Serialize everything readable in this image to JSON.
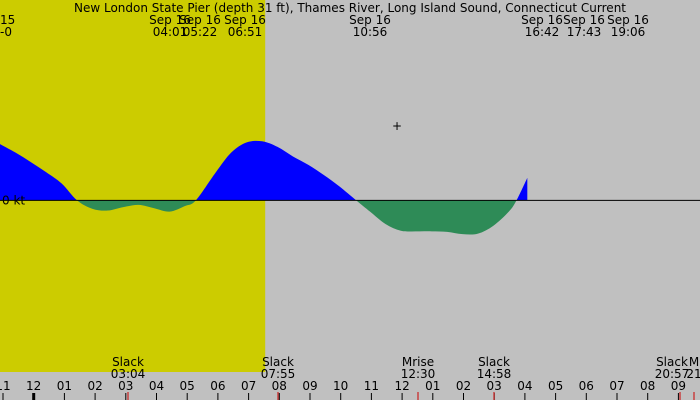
{
  "chart_data": {
    "type": "area",
    "title": "New London State Pier (depth 31 ft), Thames River, Long Island Sound, Connecticut Current",
    "left_edge_date": "15",
    "left_edge_date2": "-0",
    "zero_label": "0 kt",
    "colors": {
      "background": "#c0c0c0",
      "daylight": "#cccc00",
      "flood": "#0000ff",
      "ebb": "#2e8b57",
      "axis": "#000000",
      "tick_red": "#cc0000"
    },
    "x_range_hours": [
      10.5,
      33.2
    ],
    "y_range_kt": [
      -3.05,
      2.85
    ],
    "daylight_hours": [
      6.85,
      19.1
    ],
    "top_labels": [
      {
        "date": "Sep 16",
        "time": "04:01",
        "hour": 28.02
      },
      {
        "date": "Sep 16",
        "time": "05:22",
        "hour": 29.37
      },
      {
        "date": "Sep 16",
        "time": "06:51",
        "hour": 30.85
      },
      {
        "date": "Sep 16",
        "time": "10:56",
        "hour": 10.93
      },
      {
        "date": "Sep 16",
        "time": "16:42",
        "hour": 16.7
      },
      {
        "date": "Sep 16",
        "time": "17:43",
        "hour": 17.72
      },
      {
        "date": "Sep 16",
        "time": "19:06",
        "hour": 19.1
      }
    ],
    "events": [
      {
        "name": "Slack",
        "time": "03:04",
        "hour": 27.07
      },
      {
        "name": "Slack",
        "time": "07:55",
        "hour": 31.92
      },
      {
        "name": "Mrise",
        "time": "12:30",
        "hour": 12.5
      },
      {
        "name": "Slack",
        "time": "14:58",
        "hour": 14.97
      },
      {
        "name": "Slack",
        "time": "20:57",
        "hour": 20.95
      },
      {
        "name": "M",
        "time": "21",
        "hour": 21.5
      }
    ],
    "hour_ticks": [
      "11",
      "12",
      "01",
      "02",
      "03",
      "04",
      "05",
      "06",
      "07",
      "08",
      "09",
      "10",
      "11",
      "12",
      "01",
      "02",
      "03",
      "04",
      "05",
      "06",
      "07",
      "08",
      "09"
    ],
    "current_series": [
      {
        "hour": 10.5,
        "kt": 1.0
      },
      {
        "hour": 11.0,
        "kt": 0.85
      },
      {
        "hour": 11.5,
        "kt": 0.68
      },
      {
        "hour": 12.0,
        "kt": 0.5
      },
      {
        "hour": 12.5,
        "kt": 0.3
      },
      {
        "hour": 13.0,
        "kt": 0.0
      },
      {
        "hour": 13.5,
        "kt": -0.15
      },
      {
        "hour": 14.0,
        "kt": -0.18
      },
      {
        "hour": 14.5,
        "kt": -0.12
      },
      {
        "hour": 15.0,
        "kt": -0.08
      },
      {
        "hour": 15.5,
        "kt": -0.14
      },
      {
        "hour": 16.0,
        "kt": -0.2
      },
      {
        "hour": 16.5,
        "kt": -0.1
      },
      {
        "hour": 16.85,
        "kt": 0.0
      },
      {
        "hour": 17.5,
        "kt": 0.5
      },
      {
        "hour": 18.0,
        "kt": 0.85
      },
      {
        "hour": 18.5,
        "kt": 1.03
      },
      {
        "hour": 19.0,
        "kt": 1.05
      },
      {
        "hour": 19.5,
        "kt": 0.95
      },
      {
        "hour": 20.0,
        "kt": 0.78
      },
      {
        "hour": 20.5,
        "kt": 0.63
      },
      {
        "hour": 21.0,
        "kt": 0.45
      },
      {
        "hour": 21.5,
        "kt": 0.25
      },
      {
        "hour": 22.05,
        "kt": 0.0
      },
      {
        "hour": 22.5,
        "kt": -0.2
      },
      {
        "hour": 23.0,
        "kt": -0.42
      },
      {
        "hour": 23.5,
        "kt": -0.54
      },
      {
        "hour": 24.0,
        "kt": -0.55
      },
      {
        "hour": 24.5,
        "kt": -0.55
      },
      {
        "hour": 25.0,
        "kt": -0.56
      },
      {
        "hour": 25.5,
        "kt": -0.6
      },
      {
        "hour": 26.0,
        "kt": -0.59
      },
      {
        "hour": 26.5,
        "kt": -0.45
      },
      {
        "hour": 27.0,
        "kt": -0.2
      },
      {
        "hour": 27.25,
        "kt": 0.0
      },
      {
        "hour": 27.6,
        "kt": 0.4
      }
    ]
  }
}
